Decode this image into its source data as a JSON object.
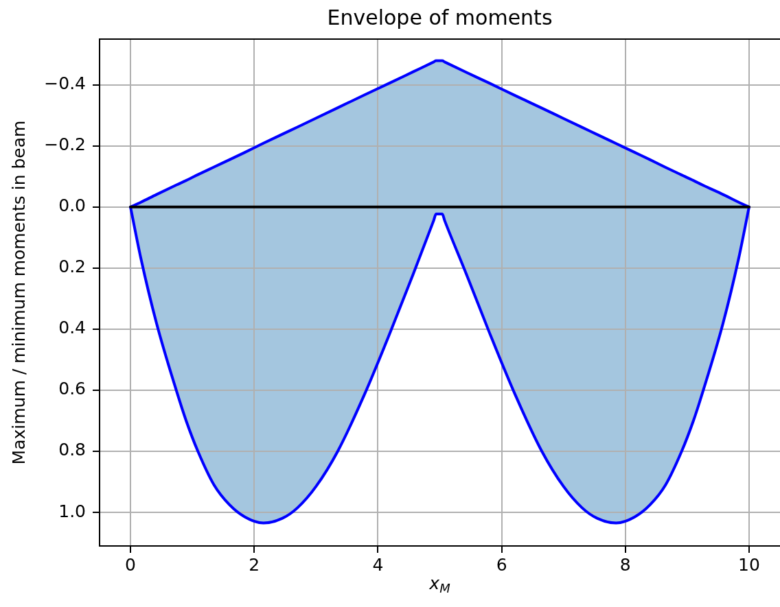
{
  "chart_data": {
    "type": "line",
    "title": "Envelope of moments",
    "xlabel": "x$_{M}$",
    "ylabel": "Maximum / minimum moments in beam",
    "xlim": [
      -0.5,
      10.5
    ],
    "xticks": [
      0,
      2,
      4,
      6,
      8,
      10
    ],
    "ylim": [
      1.11,
      -0.55
    ],
    "yticks": [
      {
        "value": -0.4,
        "label": "−0.4"
      },
      {
        "value": -0.2,
        "label": "−0.2"
      },
      {
        "value": 0,
        "label": "0.0"
      },
      {
        "value": 0.2,
        "label": "0.2"
      },
      {
        "value": 0.4,
        "label": "0.4"
      },
      {
        "value": 0.6,
        "label": "0.6"
      },
      {
        "value": 0.8,
        "label": "0.8"
      },
      {
        "value": 1,
        "label": "1.0"
      }
    ],
    "grid": true,
    "series": [
      {
        "type": "line",
        "color": "#0000ff",
        "x": [
          0,
          0.17,
          0.42,
          0.74,
          0.9,
          1.09,
          1.35,
          1.6,
          1.85,
          2.15,
          2.45,
          2.7,
          3.0,
          3.35,
          3.78,
          4.2,
          4.57,
          4.9,
          4.94,
          5.04,
          5.08,
          5.43,
          5.8,
          6.22,
          6.65,
          7.0,
          7.3,
          7.55,
          7.85,
          8.15,
          8.4,
          8.65,
          8.91,
          9.1,
          9.26,
          9.58,
          9.83,
          10
        ],
        "values": [
          0,
          0.17,
          0.38,
          0.6,
          0.7,
          0.8,
          0.91,
          0.975,
          1.015,
          1.035,
          1.02,
          0.985,
          0.915,
          0.8,
          0.615,
          0.41,
          0.22,
          0.045,
          0.023,
          0.023,
          0.045,
          0.22,
          0.41,
          0.615,
          0.8,
          0.915,
          0.985,
          1.02,
          1.035,
          1.015,
          0.975,
          0.91,
          0.8,
          0.7,
          0.6,
          0.38,
          0.17,
          0
        ],
        "lower": [
          0,
          -0.016,
          -0.041,
          -0.072,
          -0.087,
          -0.106,
          -0.131,
          -0.155,
          -0.179,
          -0.209,
          -0.238,
          -0.262,
          -0.291,
          -0.325,
          -0.367,
          -0.407,
          -0.443,
          -0.475,
          -0.479,
          -0.479,
          -0.475,
          -0.441,
          -0.406,
          -0.365,
          -0.324,
          -0.29,
          -0.261,
          -0.237,
          -0.208,
          -0.179,
          -0.155,
          -0.13,
          -0.105,
          -0.087,
          -0.071,
          -0.041,
          -0.016,
          0
        ],
        "upper": [
          0,
          0.17,
          0.38,
          0.6,
          0.7,
          0.8,
          0.91,
          0.975,
          1.015,
          1.035,
          1.02,
          0.985,
          0.915,
          0.8,
          0.615,
          0.41,
          0.22,
          0.045,
          0.023,
          0.023,
          0.045,
          0.22,
          0.41,
          0.615,
          0.8,
          0.915,
          0.985,
          1.02,
          1.035,
          1.015,
          0.975,
          0.91,
          0.8,
          0.7,
          0.6,
          0.38,
          0.17,
          0
        ]
      },
      {
        "type": "line",
        "color": "#0000ff",
        "x": [
          0,
          0.17,
          0.42,
          0.74,
          0.9,
          1.09,
          1.35,
          1.6,
          1.85,
          2.15,
          2.45,
          2.7,
          3.0,
          3.35,
          3.78,
          4.2,
          4.57,
          4.9,
          4.94,
          5.04,
          5.08,
          5.43,
          5.8,
          6.22,
          6.65,
          7.0,
          7.3,
          7.55,
          7.85,
          8.15,
          8.4,
          8.65,
          8.91,
          9.1,
          9.26,
          9.58,
          9.83,
          10
        ],
        "values": [
          0,
          -0.016,
          -0.041,
          -0.072,
          -0.087,
          -0.106,
          -0.131,
          -0.155,
          -0.179,
          -0.209,
          -0.238,
          -0.262,
          -0.291,
          -0.325,
          -0.367,
          -0.407,
          -0.443,
          -0.475,
          -0.479,
          -0.479,
          -0.475,
          -0.441,
          -0.406,
          -0.365,
          -0.324,
          -0.29,
          -0.261,
          -0.237,
          -0.208,
          -0.179,
          -0.155,
          -0.13,
          -0.105,
          -0.087,
          -0.071,
          -0.041,
          -0.016,
          0
        ]
      },
      {
        "type": "line",
        "color": "#000000",
        "x": [
          0,
          10
        ],
        "values": [
          0,
          0
        ]
      }
    ]
  }
}
